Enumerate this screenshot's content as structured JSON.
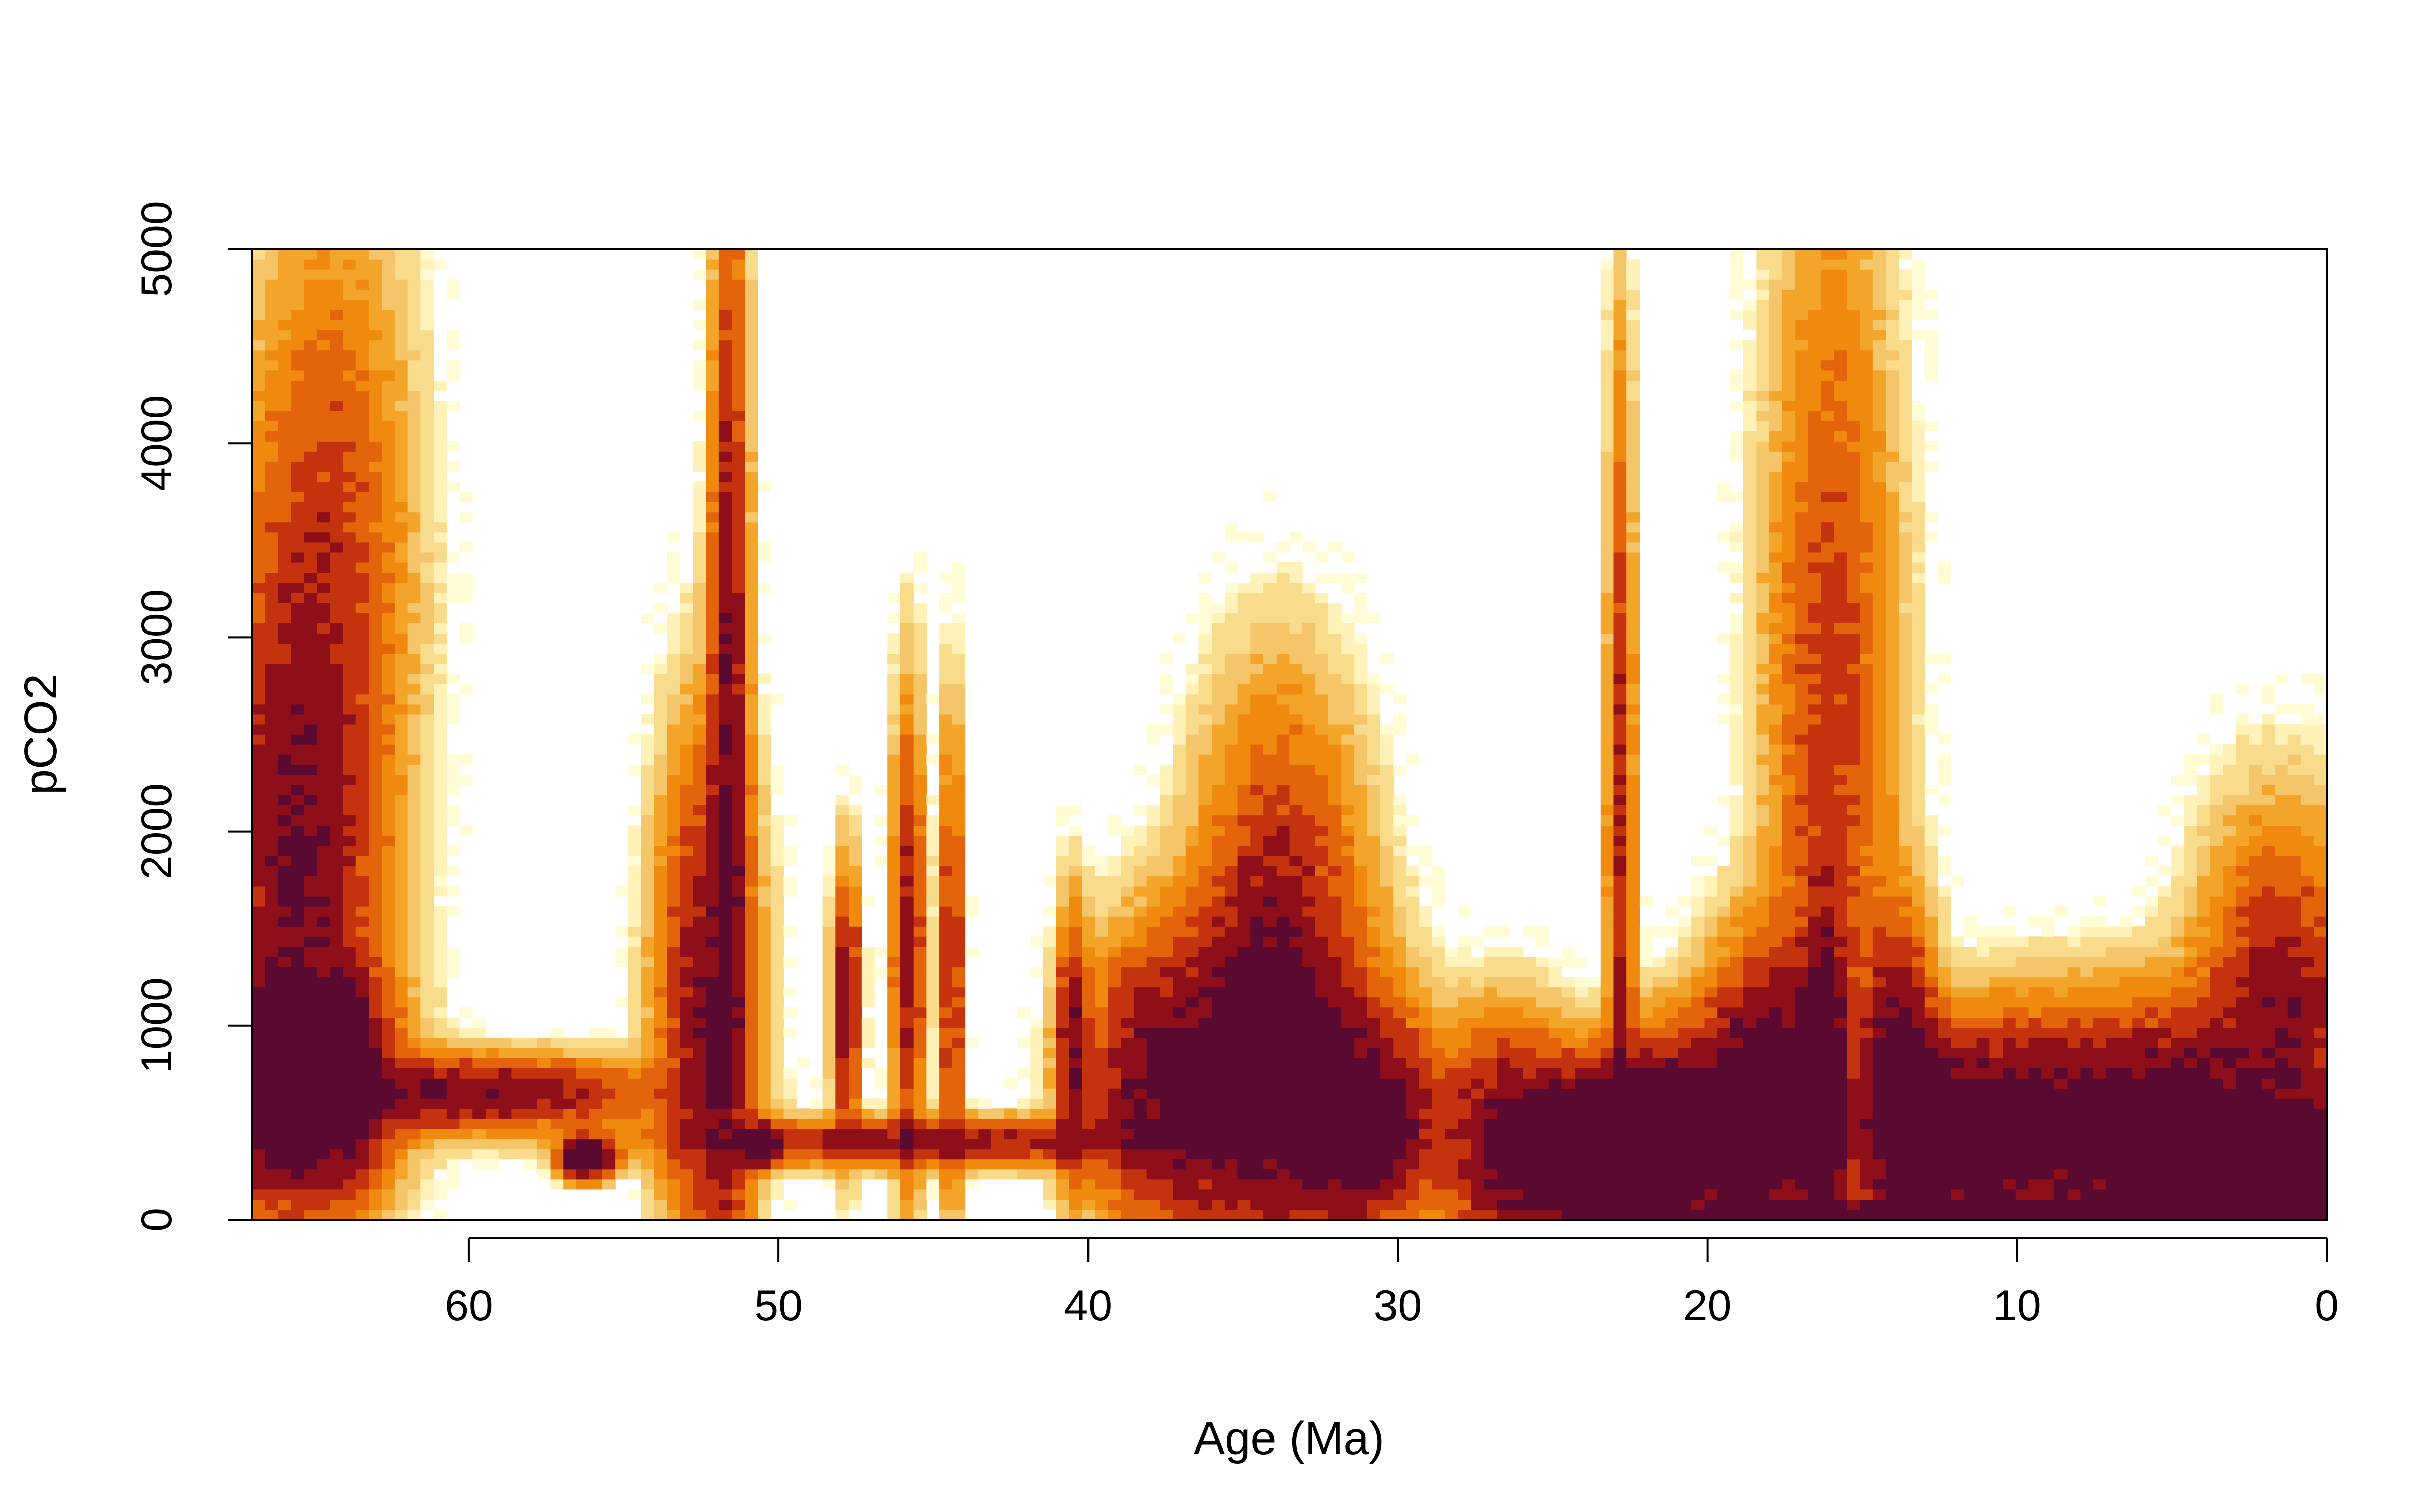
{
  "chart_data": {
    "type": "heatmap",
    "title": "",
    "xlabel": "Age (Ma)",
    "ylabel": "pCO2",
    "xlim": [
      67,
      0
    ],
    "ylim": [
      0,
      5000
    ],
    "x_reversed": true,
    "x_ticks": [
      60,
      50,
      40,
      30,
      20,
      10,
      0
    ],
    "y_ticks": [
      0,
      1000,
      2000,
      3000,
      4000,
      5000
    ],
    "grid": false,
    "legend": "none",
    "color_scale": [
      "#FFFFFF",
      "#FFFBD5",
      "#FFF2B8",
      "#F9DB8C",
      "#F5C56A",
      "#F3A52A",
      "#F08A0F",
      "#E3640A",
      "#C4320E",
      "#8E0F19",
      "#5A0A30"
    ],
    "density_components": [
      {
        "x": 65.5,
        "y": 700,
        "sx": 1.6,
        "sy": 320,
        "w": 7
      },
      {
        "x": 65.5,
        "y": 1900,
        "sx": 1.6,
        "sy": 1000,
        "w": 3.2
      },
      {
        "x": 64.5,
        "y": 3700,
        "sx": 1.5,
        "sy": 900,
        "w": 1.2
      },
      {
        "x": 63.6,
        "y": 750,
        "sx": 0.4,
        "sy": 220,
        "w": 3.5
      },
      {
        "x": 60.0,
        "y": 650,
        "sx": 3.5,
        "sy": 110,
        "w": 3.2
      },
      {
        "x": 56.2,
        "y": 320,
        "sx": 0.5,
        "sy": 60,
        "w": 7
      },
      {
        "x": 52.3,
        "y": 1100,
        "sx": 0.9,
        "sy": 800,
        "w": 3
      },
      {
        "x": 51.6,
        "y": 2600,
        "sx": 0.35,
        "sy": 1600,
        "w": 3.2
      },
      {
        "x": 50.6,
        "y": 380,
        "sx": 0.4,
        "sy": 60,
        "w": 6
      },
      {
        "x": 47.8,
        "y": 1100,
        "sx": 0.25,
        "sy": 400,
        "w": 3.2
      },
      {
        "x": 45.8,
        "y": 1400,
        "sx": 0.3,
        "sy": 700,
        "w": 2.6
      },
      {
        "x": 44.4,
        "y": 1300,
        "sx": 0.2,
        "sy": 700,
        "w": 2.6
      },
      {
        "x": 45.0,
        "y": 400,
        "sx": 5,
        "sy": 70,
        "w": 2.6
      },
      {
        "x": 40.5,
        "y": 900,
        "sx": 0.3,
        "sy": 400,
        "w": 3
      },
      {
        "x": 38.0,
        "y": 700,
        "sx": 1.3,
        "sy": 400,
        "w": 2.6
      },
      {
        "x": 34.5,
        "y": 700,
        "sx": 2.2,
        "sy": 500,
        "w": 4.6
      },
      {
        "x": 33.8,
        "y": 1500,
        "sx": 1.5,
        "sy": 700,
        "w": 2.2
      },
      {
        "x": 31.0,
        "y": 500,
        "sx": 1.4,
        "sy": 300,
        "w": 4.6
      },
      {
        "x": 26.5,
        "y": 400,
        "sx": 1.2,
        "sy": 350,
        "w": 3.2
      },
      {
        "x": 23.5,
        "y": 350,
        "sx": 1.6,
        "sy": 250,
        "w": 8
      },
      {
        "x": 22.8,
        "y": 1800,
        "sx": 0.25,
        "sy": 1500,
        "w": 2.2
      },
      {
        "x": 20.5,
        "y": 450,
        "sx": 1.5,
        "sy": 300,
        "w": 5
      },
      {
        "x": 18.0,
        "y": 600,
        "sx": 1.2,
        "sy": 450,
        "w": 5
      },
      {
        "x": 16.2,
        "y": 700,
        "sx": 0.4,
        "sy": 500,
        "w": 6
      },
      {
        "x": 16.0,
        "y": 2600,
        "sx": 1.2,
        "sy": 1500,
        "w": 1.6
      },
      {
        "x": 13.8,
        "y": 600,
        "sx": 0.7,
        "sy": 500,
        "w": 5
      },
      {
        "x": 12.0,
        "y": 450,
        "sx": 1.5,
        "sy": 300,
        "w": 4.6
      },
      {
        "x": 8.5,
        "y": 450,
        "sx": 2.0,
        "sy": 350,
        "w": 4.2
      },
      {
        "x": 5.0,
        "y": 450,
        "sx": 1.5,
        "sy": 350,
        "w": 4.6
      },
      {
        "x": 2.6,
        "y": 320,
        "sx": 0.9,
        "sy": 160,
        "w": 10
      },
      {
        "x": 1.0,
        "y": 250,
        "sx": 0.8,
        "sy": 150,
        "w": 12
      },
      {
        "x": 1.5,
        "y": 900,
        "sx": 1.5,
        "sy": 600,
        "w": 3.2
      },
      {
        "x": 11.0,
        "y": 30,
        "sx": 6,
        "sy": 40,
        "w": 5
      }
    ]
  }
}
